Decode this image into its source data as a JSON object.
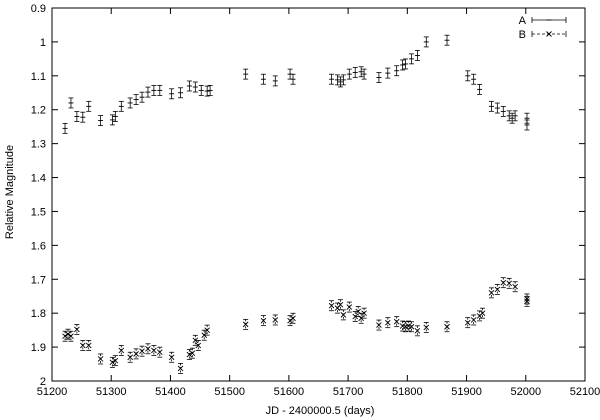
{
  "chart_data": {
    "type": "scatter",
    "xlabel": "JD - 2400000.5 (days)",
    "ylabel": "Relative Magnitude",
    "xlim": [
      51200,
      52100
    ],
    "ylim": [
      0.9,
      2.0
    ],
    "y_inverted": true,
    "xticks": [
      51200,
      51300,
      51400,
      51500,
      51600,
      51700,
      51800,
      51900,
      52000,
      52100
    ],
    "yticks": [
      0.9,
      1.0,
      1.1,
      1.2,
      1.3,
      1.4,
      1.5,
      1.6,
      1.7,
      1.8,
      1.9,
      2.0
    ],
    "xtick_labels": [
      "51200",
      "51300",
      "51400",
      "51500",
      "51600",
      "51700",
      "51800",
      "51900",
      "52000",
      "52100"
    ],
    "ytick_labels": [
      "0.9",
      "1",
      "1.1",
      "1.2",
      "1.3",
      "1.4",
      "1.5",
      "1.6",
      "1.7",
      "1.8",
      "1.9",
      "2"
    ],
    "grid": false,
    "legend_position": "top-right",
    "series": [
      {
        "name": "A",
        "marker": "plus",
        "error_style": "solid",
        "points": [
          {
            "x": 51222,
            "y": 1.255
          },
          {
            "x": 51232,
            "y": 1.18
          },
          {
            "x": 51242,
            "y": 1.22
          },
          {
            "x": 51252,
            "y": 1.222
          },
          {
            "x": 51262,
            "y": 1.19
          },
          {
            "x": 51282,
            "y": 1.232
          },
          {
            "x": 51302,
            "y": 1.23
          },
          {
            "x": 51307,
            "y": 1.22
          },
          {
            "x": 51317,
            "y": 1.19
          },
          {
            "x": 51332,
            "y": 1.18
          },
          {
            "x": 51342,
            "y": 1.17
          },
          {
            "x": 51352,
            "y": 1.163
          },
          {
            "x": 51362,
            "y": 1.148
          },
          {
            "x": 51372,
            "y": 1.143
          },
          {
            "x": 51382,
            "y": 1.143
          },
          {
            "x": 51402,
            "y": 1.153
          },
          {
            "x": 51417,
            "y": 1.15
          },
          {
            "x": 51432,
            "y": 1.13
          },
          {
            "x": 51442,
            "y": 1.133
          },
          {
            "x": 51452,
            "y": 1.143
          },
          {
            "x": 51462,
            "y": 1.145
          },
          {
            "x": 51467,
            "y": 1.143
          },
          {
            "x": 51527,
            "y": 1.095
          },
          {
            "x": 51557,
            "y": 1.11
          },
          {
            "x": 51577,
            "y": 1.115
          },
          {
            "x": 51602,
            "y": 1.095
          },
          {
            "x": 51607,
            "y": 1.11
          },
          {
            "x": 51672,
            "y": 1.11
          },
          {
            "x": 51682,
            "y": 1.112
          },
          {
            "x": 51687,
            "y": 1.118
          },
          {
            "x": 51692,
            "y": 1.112
          },
          {
            "x": 51702,
            "y": 1.095
          },
          {
            "x": 51712,
            "y": 1.09
          },
          {
            "x": 51722,
            "y": 1.088
          },
          {
            "x": 51727,
            "y": 1.095
          },
          {
            "x": 51752,
            "y": 1.105
          },
          {
            "x": 51767,
            "y": 1.092
          },
          {
            "x": 51782,
            "y": 1.085
          },
          {
            "x": 51792,
            "y": 1.068
          },
          {
            "x": 51797,
            "y": 1.065
          },
          {
            "x": 51807,
            "y": 1.05
          },
          {
            "x": 51817,
            "y": 1.04
          },
          {
            "x": 51832,
            "y": 1.0
          },
          {
            "x": 51867,
            "y": 0.995
          },
          {
            "x": 51902,
            "y": 1.1
          },
          {
            "x": 51912,
            "y": 1.11
          },
          {
            "x": 51922,
            "y": 1.14
          },
          {
            "x": 51942,
            "y": 1.19
          },
          {
            "x": 51952,
            "y": 1.195
          },
          {
            "x": 51962,
            "y": 1.205
          },
          {
            "x": 51972,
            "y": 1.218
          },
          {
            "x": 51977,
            "y": 1.225
          },
          {
            "x": 51982,
            "y": 1.218
          },
          {
            "x": 52002,
            "y": 1.225
          },
          {
            "x": 52002,
            "y": 1.245
          }
        ]
      },
      {
        "name": "B",
        "marker": "cross",
        "error_style": "dashed",
        "points": [
          {
            "x": 51222,
            "y": 1.868
          },
          {
            "x": 51227,
            "y": 1.862
          },
          {
            "x": 51232,
            "y": 1.868
          },
          {
            "x": 51242,
            "y": 1.848
          },
          {
            "x": 51252,
            "y": 1.895
          },
          {
            "x": 51262,
            "y": 1.895
          },
          {
            "x": 51282,
            "y": 1.935
          },
          {
            "x": 51302,
            "y": 1.945
          },
          {
            "x": 51307,
            "y": 1.94
          },
          {
            "x": 51317,
            "y": 1.91
          },
          {
            "x": 51332,
            "y": 1.93
          },
          {
            "x": 51342,
            "y": 1.92
          },
          {
            "x": 51352,
            "y": 1.912
          },
          {
            "x": 51362,
            "y": 1.905
          },
          {
            "x": 51372,
            "y": 1.91
          },
          {
            "x": 51382,
            "y": 1.915
          },
          {
            "x": 51402,
            "y": 1.93
          },
          {
            "x": 51417,
            "y": 1.963
          },
          {
            "x": 51432,
            "y": 1.922
          },
          {
            "x": 51437,
            "y": 1.918
          },
          {
            "x": 51442,
            "y": 1.88
          },
          {
            "x": 51447,
            "y": 1.895
          },
          {
            "x": 51457,
            "y": 1.865
          },
          {
            "x": 51462,
            "y": 1.85
          },
          {
            "x": 51527,
            "y": 1.833
          },
          {
            "x": 51557,
            "y": 1.822
          },
          {
            "x": 51577,
            "y": 1.82
          },
          {
            "x": 51602,
            "y": 1.822
          },
          {
            "x": 51607,
            "y": 1.815
          },
          {
            "x": 51672,
            "y": 1.778
          },
          {
            "x": 51682,
            "y": 1.785
          },
          {
            "x": 51687,
            "y": 1.775
          },
          {
            "x": 51692,
            "y": 1.805
          },
          {
            "x": 51702,
            "y": 1.782
          },
          {
            "x": 51712,
            "y": 1.81
          },
          {
            "x": 51717,
            "y": 1.795
          },
          {
            "x": 51722,
            "y": 1.815
          },
          {
            "x": 51727,
            "y": 1.8
          },
          {
            "x": 51752,
            "y": 1.835
          },
          {
            "x": 51767,
            "y": 1.828
          },
          {
            "x": 51782,
            "y": 1.825
          },
          {
            "x": 51792,
            "y": 1.838
          },
          {
            "x": 51797,
            "y": 1.84
          },
          {
            "x": 51802,
            "y": 1.838
          },
          {
            "x": 51807,
            "y": 1.84
          },
          {
            "x": 51817,
            "y": 1.852
          },
          {
            "x": 51832,
            "y": 1.842
          },
          {
            "x": 51867,
            "y": 1.84
          },
          {
            "x": 51902,
            "y": 1.828
          },
          {
            "x": 51912,
            "y": 1.82
          },
          {
            "x": 51922,
            "y": 1.808
          },
          {
            "x": 51927,
            "y": 1.8
          },
          {
            "x": 51942,
            "y": 1.74
          },
          {
            "x": 51952,
            "y": 1.73
          },
          {
            "x": 51962,
            "y": 1.71
          },
          {
            "x": 51972,
            "y": 1.712
          },
          {
            "x": 51982,
            "y": 1.722
          },
          {
            "x": 52002,
            "y": 1.758
          },
          {
            "x": 52002,
            "y": 1.765
          }
        ]
      }
    ]
  }
}
